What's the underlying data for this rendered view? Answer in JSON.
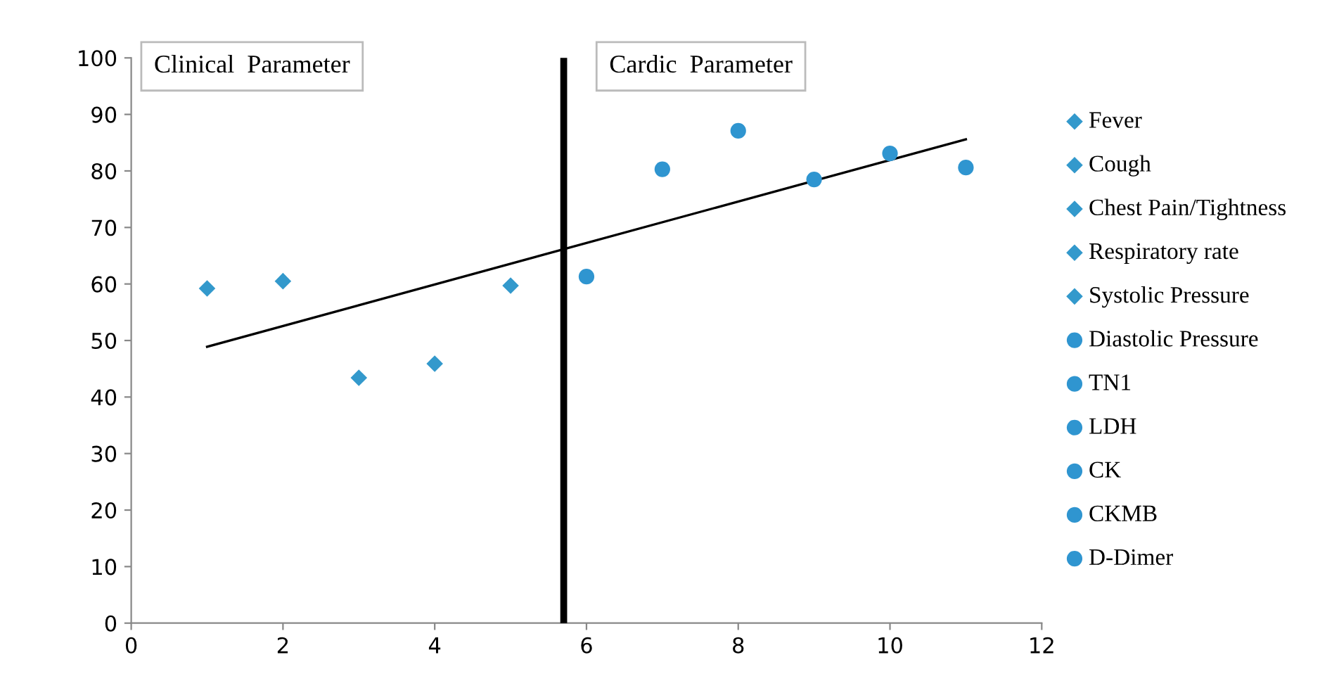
{
  "chart_data": {
    "type": "scatter",
    "series": [
      {
        "name": "Fever",
        "color": "#3399cc",
        "marker": "diamond",
        "x": [
          1
        ],
        "values": [
          59.2
        ]
      },
      {
        "name": "Cough",
        "color": "#3399cc",
        "marker": "diamond",
        "x": [
          2
        ],
        "values": [
          60.5
        ]
      },
      {
        "name": "Chest Pain/Tightness",
        "color": "#3399cc",
        "marker": "diamond",
        "x": [
          3
        ],
        "values": [
          43.4
        ]
      },
      {
        "name": "Respiratory rate",
        "color": "#3399cc",
        "marker": "diamond",
        "x": [
          4
        ],
        "values": [
          45.9
        ]
      },
      {
        "name": "Systolic Pressure",
        "color": "#3399cc",
        "marker": "diamond",
        "x": [
          5
        ],
        "values": [
          59.7
        ]
      },
      {
        "name": "Diastolic Pressure",
        "color": "#2f95d0",
        "marker": "circle",
        "x": [
          6
        ],
        "values": [
          61.3
        ]
      },
      {
        "name": "TN1",
        "color": "#2f95d0",
        "marker": "circle",
        "x": [
          7
        ],
        "values": [
          80.3
        ]
      },
      {
        "name": "LDH",
        "color": "#2f95d0",
        "marker": "circle",
        "x": [
          8
        ],
        "values": [
          87.1
        ]
      },
      {
        "name": "CK",
        "color": "#2f95d0",
        "marker": "circle",
        "x": [
          9
        ],
        "values": [
          78.5
        ]
      },
      {
        "name": "CKMB",
        "color": "#2f95d0",
        "marker": "circle",
        "x": [
          10
        ],
        "values": [
          83.1
        ]
      },
      {
        "name": "D-Dimer",
        "color": "#2f95d0",
        "marker": "circle",
        "x": [
          11
        ],
        "values": [
          80.6
        ]
      },
      {
        "type": "line",
        "color": "#000000",
        "x": [
          1,
          11
        ],
        "values": [
          48.9,
          85.6
        ]
      }
    ],
    "ref_lines": [
      {
        "axis": "x",
        "value": 5.7,
        "color": "#000000"
      }
    ],
    "annotations": [
      "Clinical  Parameter",
      "Cardic  Parameter"
    ],
    "xlim": [
      0,
      12
    ],
    "xticks": [
      0,
      2,
      4,
      6,
      8,
      10,
      12
    ],
    "ylim": [
      0,
      100
    ],
    "yticks": [
      0,
      10,
      20,
      30,
      40,
      50,
      60,
      70,
      80,
      90,
      100
    ],
    "grid": false,
    "legend": "right"
  }
}
